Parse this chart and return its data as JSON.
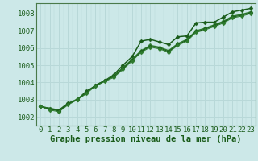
{
  "xlabel": "Graphe pression niveau de la mer (hPa)",
  "bg_color": "#cce8e8",
  "grid_color": "#b8d8d8",
  "line_color": "#1a5c1a",
  "line_color2": "#2d7a2d",
  "x": [
    0,
    1,
    2,
    3,
    4,
    5,
    6,
    7,
    8,
    9,
    10,
    11,
    12,
    13,
    14,
    15,
    16,
    17,
    18,
    19,
    20,
    21,
    22,
    23
  ],
  "series": [
    [
      1002.6,
      1002.5,
      1002.4,
      1002.8,
      1003.0,
      1003.5,
      1003.8,
      1004.1,
      1004.45,
      1005.0,
      1005.5,
      1006.4,
      1006.5,
      1006.35,
      1006.2,
      1006.65,
      1006.7,
      1007.45,
      1007.5,
      1007.5,
      1007.8,
      1008.1,
      1008.2,
      1008.3
    ],
    [
      1002.6,
      1002.5,
      1002.35,
      1002.75,
      1003.05,
      1003.4,
      1003.85,
      1004.1,
      1004.4,
      1004.85,
      1005.35,
      1005.85,
      1006.15,
      1006.05,
      1005.85,
      1006.25,
      1006.5,
      1007.0,
      1007.15,
      1007.35,
      1007.55,
      1007.85,
      1007.95,
      1008.1
    ],
    [
      1002.6,
      1002.45,
      1002.35,
      1002.75,
      1003.0,
      1003.4,
      1003.85,
      1004.1,
      1004.35,
      1004.8,
      1005.3,
      1005.8,
      1006.1,
      1006.0,
      1005.8,
      1006.2,
      1006.45,
      1006.95,
      1007.1,
      1007.3,
      1007.5,
      1007.8,
      1007.9,
      1008.05
    ],
    [
      1002.6,
      1002.4,
      1002.3,
      1002.7,
      1003.0,
      1003.35,
      1003.8,
      1004.05,
      1004.3,
      1004.75,
      1005.25,
      1005.75,
      1006.05,
      1005.95,
      1005.75,
      1006.15,
      1006.4,
      1006.9,
      1007.05,
      1007.25,
      1007.45,
      1007.75,
      1007.85,
      1008.0
    ]
  ],
  "ylim": [
    1001.5,
    1008.6
  ],
  "yticks": [
    1002,
    1003,
    1004,
    1005,
    1006,
    1007,
    1008
  ],
  "marker": "D",
  "marker_size": 2.5,
  "xlabel_fontsize": 7.5,
  "tick_fontsize": 6.5,
  "xlabel_color": "#1a5c1a",
  "tick_color": "#1a5c1a",
  "spine_color": "#4a7a4a"
}
